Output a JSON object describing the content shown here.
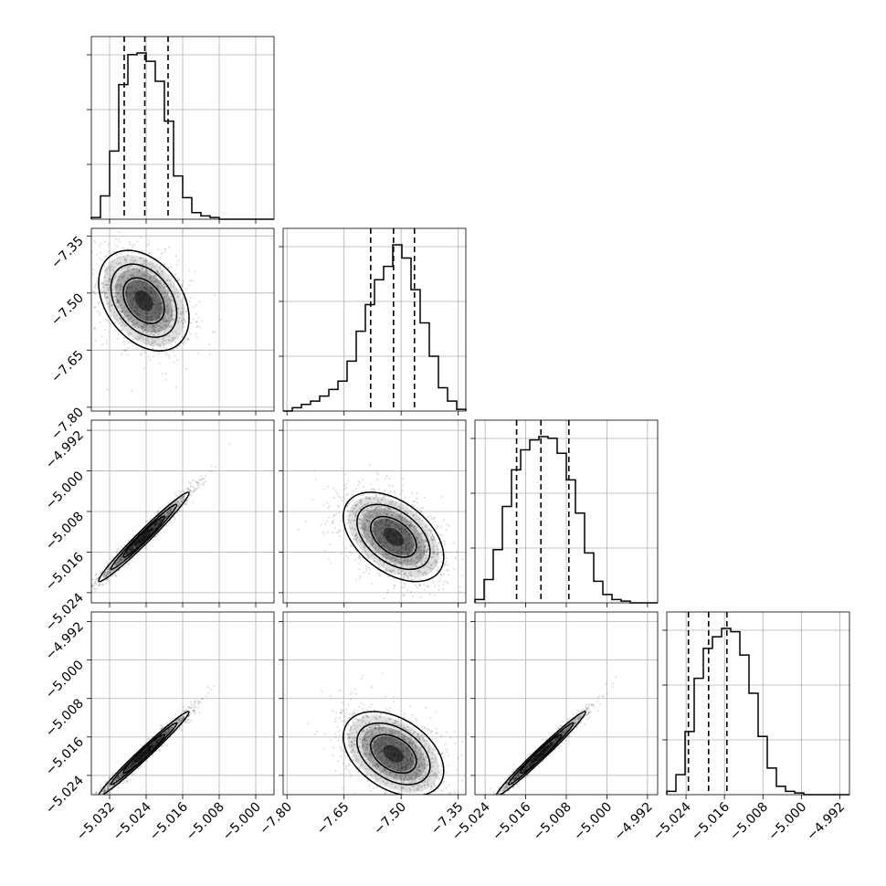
{
  "chart_data": {
    "type": "corner",
    "grid": true,
    "parameters": [
      {
        "index": 0,
        "range": [
          -5.036,
          -4.996
        ],
        "ticks": [
          -5.032,
          -5.024,
          -5.016,
          -5.008,
          -5.0
        ],
        "tick_labels": [
          "−5.032",
          "−5.024",
          "−5.016",
          "−5.008",
          "−5.000"
        ],
        "mean": -5.0245,
        "std": 0.0045,
        "quantiles": [
          -5.0288,
          -5.0243,
          -5.0192
        ]
      },
      {
        "index": 1,
        "range": [
          -7.81,
          -7.33
        ],
        "ticks": [
          -7.8,
          -7.65,
          -7.5,
          -7.35
        ],
        "tick_labels": [
          "−7.80",
          "−7.65",
          "−7.50",
          "−7.35"
        ],
        "mean": -7.52,
        "std": 0.06,
        "quantiles": [
          -7.58,
          -7.52,
          -7.465
        ]
      },
      {
        "index": 2,
        "range": [
          -5.026,
          -4.99
        ],
        "ticks": [
          -5.024,
          -5.016,
          -5.008,
          -5.0,
          -4.992
        ],
        "tick_labels": [
          "−5.024",
          "−5.016",
          "−5.008",
          "−5.000",
          "−4.992"
        ],
        "mean": -5.013,
        "std": 0.004,
        "quantiles": [
          -5.0178,
          -5.013,
          -5.0075
        ]
      },
      {
        "index": 3,
        "range": [
          -5.028,
          -4.99
        ],
        "ticks": [
          -5.024,
          -5.016,
          -5.008,
          -5.0,
          -4.992
        ],
        "tick_labels": [
          "−5.024",
          "−5.016",
          "−5.008",
          "−5.000",
          "−4.992"
        ],
        "mean": -5.0195,
        "std": 0.004,
        "quantiles": [
          -5.0235,
          -5.0193,
          -5.0155
        ]
      }
    ],
    "histograms": [
      {
        "param": 0,
        "counts": [
          1,
          14,
          41,
          81,
          99,
          100,
          95,
          83,
          59,
          26,
          13,
          4,
          2,
          1,
          0,
          0,
          0,
          0,
          0,
          0
        ]
      },
      {
        "param": 1,
        "counts": [
          0,
          2,
          4,
          6,
          9,
          13,
          18,
          30,
          48,
          64,
          79,
          87,
          100,
          92,
          73,
          53,
          33,
          14,
          6,
          1
        ]
      },
      {
        "param": 2,
        "counts": [
          2,
          14,
          32,
          58,
          80,
          92,
          98,
          100,
          99,
          90,
          74,
          54,
          30,
          13,
          5,
          2,
          1,
          0,
          0,
          0
        ]
      },
      {
        "param": 3,
        "counts": [
          2,
          12,
          38,
          70,
          88,
          95,
          100,
          98,
          84,
          61,
          35,
          16,
          5,
          2,
          1,
          0,
          0,
          0,
          0,
          0
        ]
      }
    ],
    "pairs": [
      {
        "row": 1,
        "col": 0,
        "correlation": -0.35
      },
      {
        "row": 2,
        "col": 0,
        "correlation": 0.98
      },
      {
        "row": 2,
        "col": 1,
        "correlation": -0.45
      },
      {
        "row": 3,
        "col": 0,
        "correlation": 0.985
      },
      {
        "row": 3,
        "col": 1,
        "correlation": -0.4
      },
      {
        "row": 3,
        "col": 2,
        "correlation": 0.985
      }
    ],
    "colors": {
      "ink": "#000000",
      "grid": "#b0b0b0",
      "background": "#ffffff"
    }
  }
}
